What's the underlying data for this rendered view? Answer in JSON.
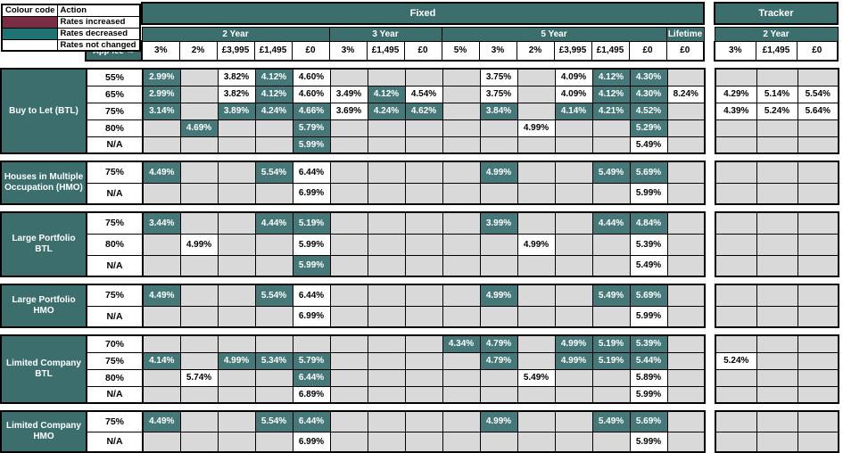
{
  "legend": {
    "col1": "Colour code",
    "col2": "Action",
    "rows": [
      {
        "color": "#7B2D45",
        "label": "Rates increased"
      },
      {
        "color": "#1F7373",
        "label": "Rates decreased"
      },
      {
        "color": "#FFFFFF",
        "label": "Rates not changed"
      }
    ]
  },
  "header": {
    "fixed_label": "Fixed",
    "tracker_label": "Tracker",
    "app_fee_label": "App fee →",
    "fixed_groups": [
      {
        "label": "2 Year",
        "fees": [
          "3%",
          "2%",
          "£3,995",
          "£1,495",
          "£0"
        ]
      },
      {
        "label": "3 Year",
        "fees": [
          "3%",
          "£1,495",
          "£0"
        ]
      },
      {
        "label": "5 Year",
        "fees": [
          "5%",
          "3%",
          "2%",
          "£3,995",
          "£1,495",
          "£0"
        ]
      },
      {
        "label": "Lifetime",
        "fees": [
          "£0"
        ]
      }
    ],
    "tracker_groups": [
      {
        "label": "2 Year",
        "fees": [
          "3%",
          "£1,495",
          "£0"
        ]
      }
    ]
  },
  "colors": {
    "header_teal": "#3C6E6E",
    "decreased_teal": "#477879",
    "increased_maroon": "#7B2D45",
    "blank_grey": "#D9D9D9",
    "not_changed_white": "#FFFFFF"
  },
  "cell_states": {
    "d": "rates decreased",
    "n": "rates not changed",
    "i": "rates increased",
    "": "no product"
  },
  "sections": [
    {
      "product": "Buy to Let (BTL)",
      "rows": [
        {
          "ltv": "55%",
          "fixed": [
            "2.99%|d",
            "",
            "3.82%|n",
            "4.12%|d",
            "4.60%|n",
            "",
            "",
            "",
            "",
            "3.75%|n",
            "",
            "4.09%|n",
            "4.12%|d",
            "4.30%|d",
            ""
          ],
          "tracker": [
            "",
            "",
            ""
          ]
        },
        {
          "ltv": "65%",
          "fixed": [
            "2.99%|d",
            "",
            "3.82%|n",
            "4.12%|d",
            "4.60%|n",
            "3.49%|n",
            "4.12%|d",
            "4.54%|n",
            "",
            "3.75%|n",
            "",
            "4.09%|n",
            "4.12%|d",
            "4.30%|d",
            "8.24%|n"
          ],
          "tracker": [
            "4.29%|n",
            "5.14%|n",
            "5.54%|n"
          ]
        },
        {
          "ltv": "75%",
          "fixed": [
            "3.14%|d",
            "",
            "3.89%|d",
            "4.24%|d",
            "4.66%|d",
            "3.69%|n",
            "4.24%|d",
            "4.62%|d",
            "",
            "3.84%|d",
            "",
            "4.14%|d",
            "4.21%|d",
            "4.52%|d",
            ""
          ],
          "tracker": [
            "4.39%|n",
            "5.24%|n",
            "5.64%|n"
          ]
        },
        {
          "ltv": "80%",
          "fixed": [
            "",
            "4.69%|d",
            "",
            "",
            "5.79%|d",
            "",
            "",
            "",
            "",
            "",
            "4.99%|n",
            "",
            "",
            "5.29%|d",
            ""
          ],
          "tracker": [
            "",
            "",
            ""
          ]
        },
        {
          "ltv": "N/A",
          "fixed": [
            "",
            "",
            "",
            "",
            "5.99%|d",
            "",
            "",
            "",
            "",
            "",
            "",
            "",
            "",
            "5.49%|n",
            ""
          ],
          "tracker": [
            "",
            "",
            ""
          ]
        }
      ]
    },
    {
      "product": "Houses in Multiple Occupation (HMO)",
      "rows": [
        {
          "ltv": "75%",
          "fixed": [
            "4.49%|d",
            "",
            "",
            "5.54%|d",
            "6.44%|n",
            "",
            "",
            "",
            "",
            "4.99%|d",
            "",
            "",
            "5.49%|d",
            "5.69%|d",
            ""
          ],
          "tracker": [
            "",
            "",
            ""
          ]
        },
        {
          "ltv": "N/A",
          "fixed": [
            "",
            "",
            "",
            "",
            "6.99%|n",
            "",
            "",
            "",
            "",
            "",
            "",
            "",
            "",
            "5.99%|n",
            ""
          ],
          "tracker": [
            "",
            "",
            ""
          ]
        }
      ]
    },
    {
      "product": "Large Portfolio BTL",
      "rows": [
        {
          "ltv": "75%",
          "fixed": [
            "3.44%|d",
            "",
            "",
            "4.44%|d",
            "5.19%|d",
            "",
            "",
            "",
            "",
            "3.99%|d",
            "",
            "",
            "4.44%|d",
            "4.84%|d",
            ""
          ],
          "tracker": [
            "",
            "",
            ""
          ]
        },
        {
          "ltv": "80%",
          "fixed": [
            "",
            "4.99%|n",
            "",
            "",
            "5.99%|n",
            "",
            "",
            "",
            "",
            "",
            "4.99%|n",
            "",
            "",
            "5.39%|n",
            ""
          ],
          "tracker": [
            "",
            "",
            ""
          ]
        },
        {
          "ltv": "N/A",
          "fixed": [
            "",
            "",
            "",
            "",
            "5.99%|d",
            "",
            "",
            "",
            "",
            "",
            "",
            "",
            "",
            "5.49%|n",
            ""
          ],
          "tracker": [
            "",
            "",
            ""
          ]
        }
      ]
    },
    {
      "product": "Large Portfolio HMO",
      "rows": [
        {
          "ltv": "75%",
          "fixed": [
            "4.49%|d",
            "",
            "",
            "5.54%|d",
            "6.44%|n",
            "",
            "",
            "",
            "",
            "4.99%|d",
            "",
            "",
            "5.49%|d",
            "5.69%|d",
            ""
          ],
          "tracker": [
            "",
            "",
            ""
          ]
        },
        {
          "ltv": "N/A",
          "fixed": [
            "",
            "",
            "",
            "",
            "6.99%|n",
            "",
            "",
            "",
            "",
            "",
            "",
            "",
            "",
            "5.99%|n",
            ""
          ],
          "tracker": [
            "",
            "",
            ""
          ]
        }
      ]
    },
    {
      "product": "Limited Company BTL",
      "rows": [
        {
          "ltv": "70%",
          "fixed": [
            "",
            "",
            "",
            "",
            "",
            "",
            "",
            "",
            "4.34%|d",
            "4.79%|d",
            "",
            "4.99%|d",
            "5.19%|d",
            "5.39%|d",
            ""
          ],
          "tracker": [
            "",
            "",
            ""
          ]
        },
        {
          "ltv": "75%",
          "fixed": [
            "4.14%|d",
            "",
            "4.99%|d",
            "5.34%|d",
            "5.79%|d",
            "",
            "",
            "",
            "",
            "4.79%|d",
            "",
            "4.99%|d",
            "5.19%|d",
            "5.44%|d",
            ""
          ],
          "tracker": [
            "5.24%|n",
            "",
            ""
          ]
        },
        {
          "ltv": "80%",
          "fixed": [
            "",
            "5.74%|n",
            "",
            "",
            "6.44%|d",
            "",
            "",
            "",
            "",
            "",
            "5.49%|n",
            "",
            "",
            "5.89%|n",
            ""
          ],
          "tracker": [
            "",
            "",
            ""
          ]
        },
        {
          "ltv": "N/A",
          "fixed": [
            "",
            "",
            "",
            "",
            "6.89%|n",
            "",
            "",
            "",
            "",
            "",
            "",
            "",
            "",
            "5.99%|n",
            ""
          ],
          "tracker": [
            "",
            "",
            ""
          ]
        }
      ]
    },
    {
      "product": "Limited Company HMO",
      "rows": [
        {
          "ltv": "75%",
          "fixed": [
            "4.49%|d",
            "",
            "",
            "5.54%|d",
            "6.44%|d",
            "",
            "",
            "",
            "",
            "4.99%|d",
            "",
            "",
            "5.49%|d",
            "5.69%|d",
            ""
          ],
          "tracker": [
            "",
            "",
            ""
          ]
        },
        {
          "ltv": "N/A",
          "fixed": [
            "",
            "",
            "",
            "",
            "6.99%|n",
            "",
            "",
            "",
            "",
            "",
            "",
            "",
            "",
            "5.99%|n",
            ""
          ],
          "tracker": [
            "",
            "",
            ""
          ]
        }
      ]
    }
  ]
}
